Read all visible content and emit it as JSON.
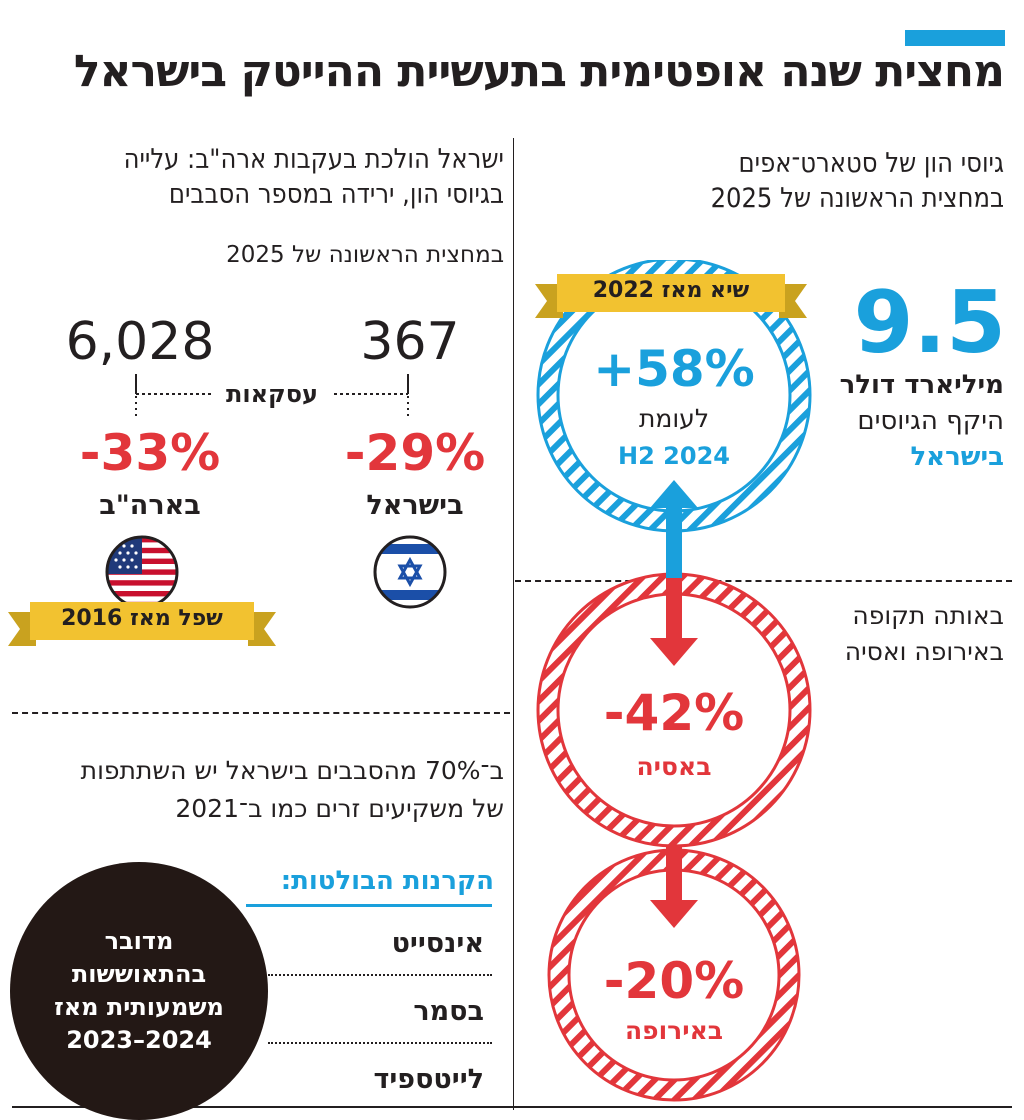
{
  "title": "מחצית שנה אופטימית בתעשיית ההייטק בישראל",
  "right_panel": {
    "heading_line1": "גיוסי הון של סטארט־אפים",
    "heading_line2": "במחצית הראשונה של 2025",
    "big_value": "9.5",
    "unit": "מיליארד דולר",
    "desc_line1": "היקף הגיוסים",
    "desc_line2": "בישראל",
    "ribbon": "שיא מאז 2022",
    "israel_change": "+58%",
    "israel_compare": "לעומת",
    "israel_period": "H2 2024",
    "same_period_line1": "באותה תקופה",
    "same_period_line2": "באירופה ואסיה",
    "asia_change": "-42%",
    "asia_label": "באסיה",
    "europe_change": "-20%",
    "europe_label": "באירופה"
  },
  "left_panel": {
    "heading_line1": "ישראל הולכת בעקבות ארה\"ב: עלייה",
    "heading_line2": "בגיוסי הון, ירידה במספר הסבבים",
    "subheading": "במחצית הראשונה של 2025",
    "deals_label": "עסקאות",
    "israel_deals": "367",
    "us_deals": "6,028",
    "israel_change": "-29%",
    "israel_label": "בישראל",
    "us_change": "-33%",
    "us_label": "בארה\"ב",
    "ribbon": "שפל מאז 2016",
    "foreign_line1": "ב־70% מהסבבים בישראל יש השתתפות",
    "foreign_line2": "של משקיעים זרים כמו ב־2021",
    "funds_heading": "הקרנות הבולטות:",
    "funds": [
      "אינסייט",
      "בסמר",
      "לייטספיד"
    ],
    "slowdown_line1": "מדובר",
    "slowdown_line2": "בהתאוששות",
    "slowdown_line3": "משמעותית מאז",
    "slowdown_line4": "2024–2023"
  },
  "colors": {
    "accent_blue": "#1aa0dc",
    "red": "#e2363b",
    "ribbon_gold": "#f2c230",
    "dark": "#231f20"
  },
  "icons": [
    "israel-flag-icon",
    "us-flag-icon",
    "up-arrow-icon",
    "down-arrow-icon"
  ]
}
